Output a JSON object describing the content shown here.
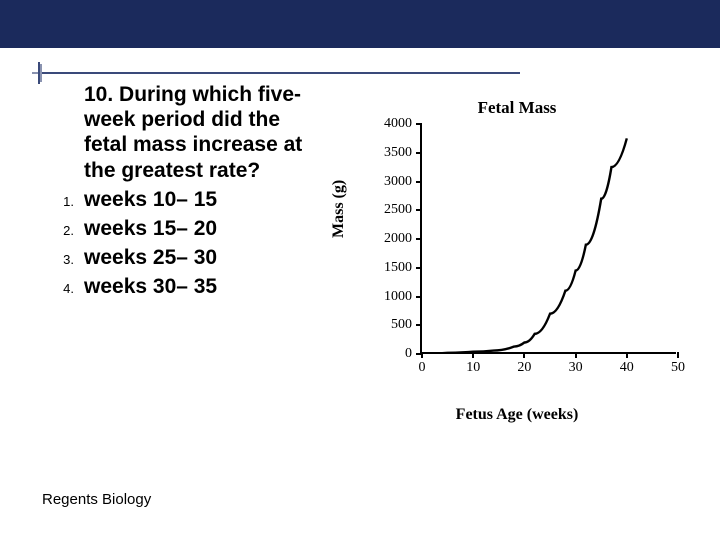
{
  "header_color": "#1b2a5c",
  "question": {
    "text": "10. During which five-week period did the fetal mass increase at the greatest rate?",
    "options": [
      {
        "num": "1.",
        "text": "weeks 10– 15"
      },
      {
        "num": "2.",
        "text": "weeks 15– 20"
      },
      {
        "num": "3.",
        "text": "weeks 25– 30"
      },
      {
        "num": "4.",
        "text": "weeks 30– 35"
      }
    ]
  },
  "footer": "Regents Biology",
  "chart": {
    "type": "line",
    "title": "Fetal Mass",
    "xlabel": "Fetus Age (weeks)",
    "ylabel": "Mass (g)",
    "xlim": [
      0,
      50
    ],
    "ylim": [
      0,
      4000
    ],
    "xtick_step": 10,
    "ytick_step": 500,
    "xticks": [
      0,
      10,
      20,
      30,
      40,
      50
    ],
    "yticks": [
      0,
      500,
      1000,
      1500,
      2000,
      2500,
      3000,
      3500,
      4000
    ],
    "line_color": "#000000",
    "line_width": 2.4,
    "background_color": "#ffffff",
    "data": [
      {
        "x": 0,
        "y": 0
      },
      {
        "x": 5,
        "y": 20
      },
      {
        "x": 8,
        "y": 30
      },
      {
        "x": 10,
        "y": 40
      },
      {
        "x": 14,
        "y": 60
      },
      {
        "x": 18,
        "y": 130
      },
      {
        "x": 20,
        "y": 200
      },
      {
        "x": 22,
        "y": 350
      },
      {
        "x": 25,
        "y": 700
      },
      {
        "x": 28,
        "y": 1100
      },
      {
        "x": 30,
        "y": 1450
      },
      {
        "x": 32,
        "y": 1900
      },
      {
        "x": 35,
        "y": 2700
      },
      {
        "x": 37,
        "y": 3250
      },
      {
        "x": 40,
        "y": 3750
      }
    ]
  }
}
